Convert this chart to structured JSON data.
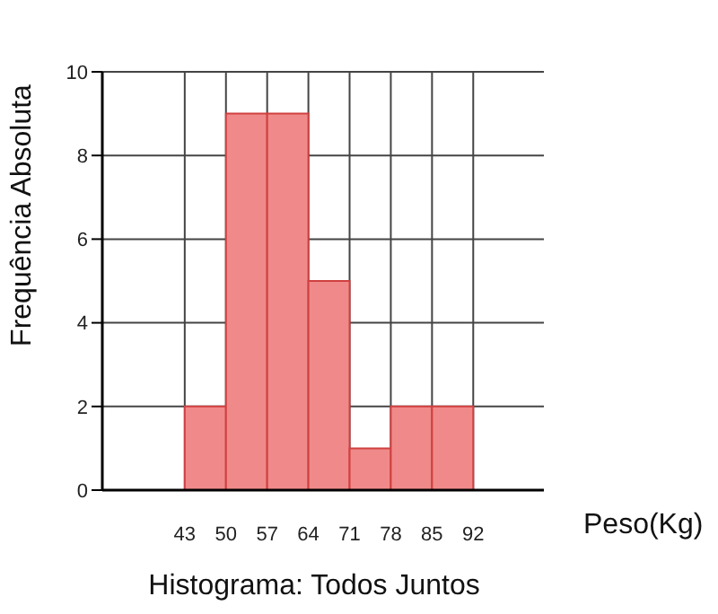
{
  "chart_data": {
    "type": "histogram",
    "title": "Histograma: Todos Juntos",
    "xlabel": "Peso(Kg)",
    "ylabel": "Frequência Absoluta",
    "bins": [
      43,
      50,
      57,
      64,
      71,
      78,
      85,
      92
    ],
    "values": [
      2,
      9,
      9,
      5,
      1,
      2,
      2
    ],
    "color": "#f08a8a",
    "xlim": [
      29,
      104
    ],
    "xticks": [
      43,
      50,
      57,
      64,
      71,
      78,
      85,
      92
    ],
    "ylim": [
      0,
      10
    ],
    "yticks": [
      0,
      2,
      4,
      6,
      8,
      10
    ],
    "grid": true
  }
}
